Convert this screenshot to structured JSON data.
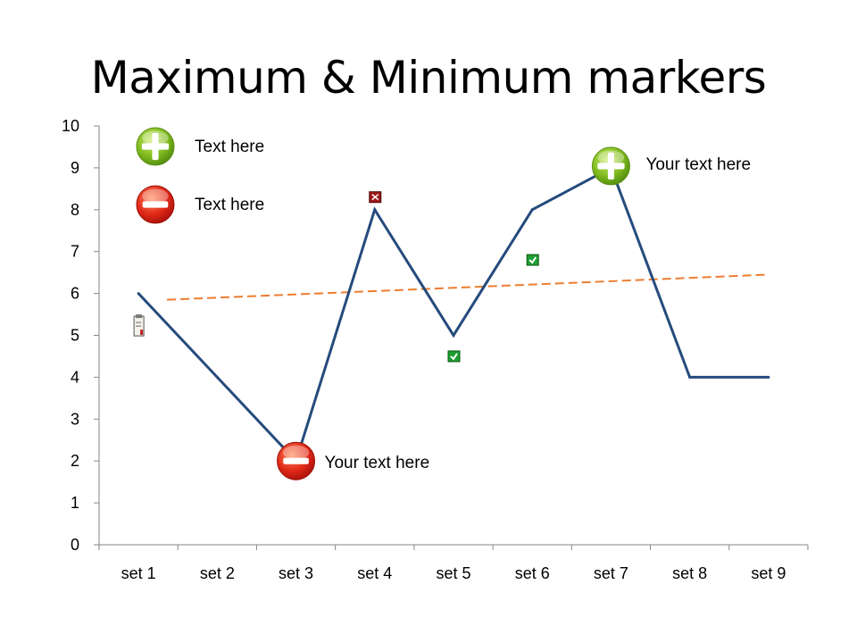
{
  "title": "Maximum & Minimum markers",
  "legend": [
    {
      "icon": "plus-circle-icon",
      "text": "Text here"
    },
    {
      "icon": "minus-circle-icon",
      "text": "Text here"
    }
  ],
  "colors": {
    "series": "#254B7C",
    "trend": "#ED7D31",
    "plus_green": "#7FBA1E",
    "minus_red": "#E02818"
  },
  "chart_data": {
    "type": "line",
    "categories": [
      "set 1",
      "set 2",
      "set 3",
      "set 4",
      "set 5",
      "set 6",
      "set 7",
      "set 8",
      "set 9"
    ],
    "series": [
      {
        "values": [
          6,
          4,
          2,
          8,
          5,
          8,
          9,
          4,
          4
        ]
      }
    ],
    "trendline": {
      "start": 5.85,
      "end": 6.45
    },
    "ylim": [
      0,
      10
    ],
    "yticks": [
      0,
      1,
      2,
      3,
      4,
      5,
      6,
      7,
      8,
      9,
      10
    ],
    "grid": false,
    "max_marker": {
      "category": "set 7",
      "value": 9,
      "label": "Your text here"
    },
    "min_marker": {
      "category": "set 3",
      "value": 2,
      "label": "Your text here"
    },
    "status_icons": [
      {
        "category": "set 1",
        "value": 5.2,
        "icon": "clipboard-icon"
      },
      {
        "category": "set 4",
        "value": 8.3,
        "icon": "red-x-icon"
      },
      {
        "category": "set 5",
        "value": 4.5,
        "icon": "green-check-icon"
      },
      {
        "category": "set 6",
        "value": 6.8,
        "icon": "green-check-icon"
      }
    ]
  }
}
